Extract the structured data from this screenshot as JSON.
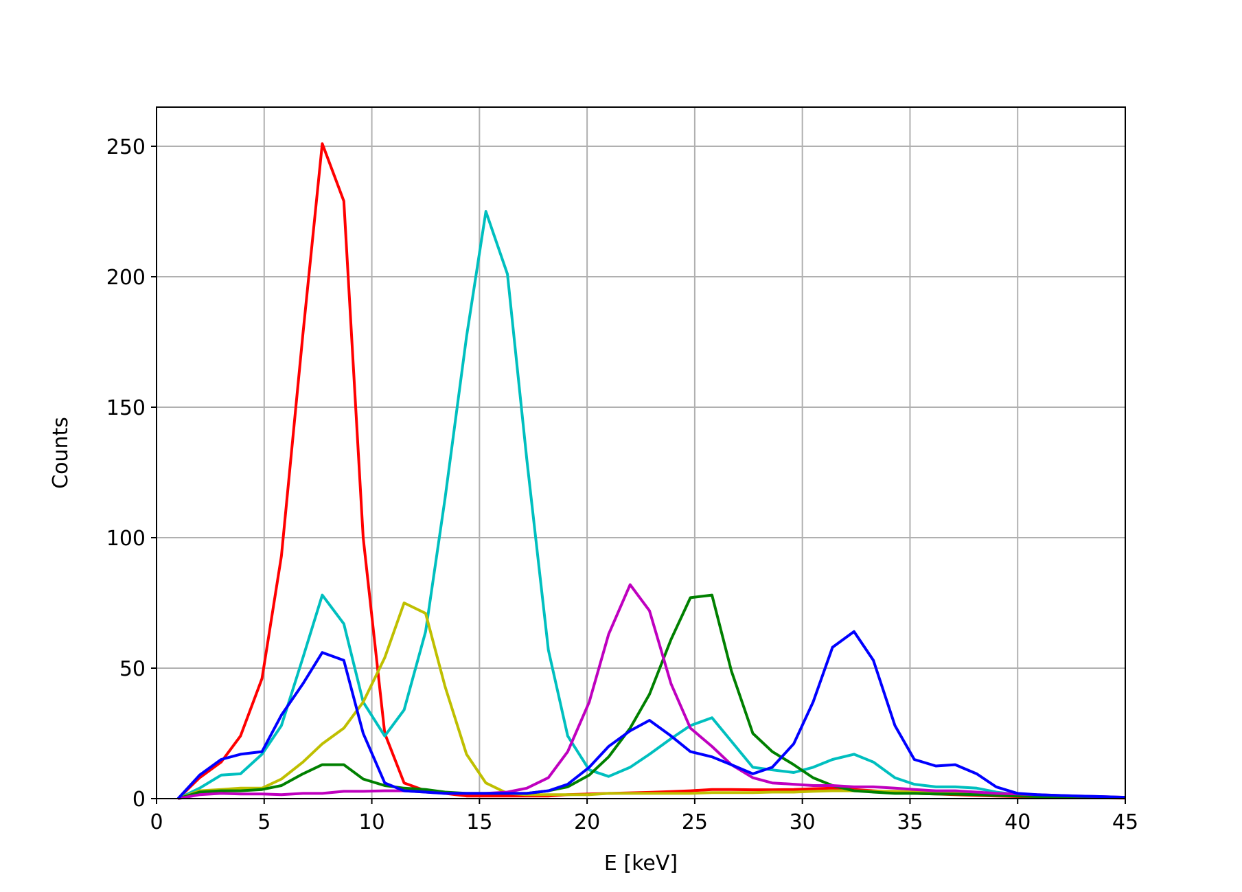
{
  "chart_data": {
    "type": "line",
    "title": "",
    "xlabel": "E [keV]",
    "ylabel": "Counts",
    "xlim": [
      0,
      45
    ],
    "ylim": [
      0,
      265
    ],
    "xticks": [
      "0",
      "5",
      "10",
      "15",
      "20",
      "25",
      "30",
      "35",
      "40",
      "45"
    ],
    "yticks": [
      "0",
      "50",
      "100",
      "150",
      "200",
      "250"
    ],
    "grid": true,
    "legend": "none",
    "x": [
      1.0,
      2.0,
      3.0,
      3.9,
      4.9,
      5.8,
      6.8,
      7.7,
      8.7,
      9.6,
      10.6,
      11.5,
      12.5,
      13.4,
      14.4,
      15.3,
      16.3,
      17.2,
      18.2,
      19.1,
      20.1,
      21.0,
      22.0,
      22.9,
      23.9,
      24.8,
      25.8,
      26.7,
      27.7,
      28.6,
      29.6,
      30.5,
      31.4,
      32.4,
      33.3,
      34.3,
      35.2,
      36.2,
      37.1,
      38.1,
      39.0,
      40.0,
      40.9,
      41.9,
      42.8,
      43.8,
      45.0
    ],
    "series": [
      {
        "color": "#ff0000",
        "values": [
          0,
          8,
          14,
          24,
          46,
          93,
          178,
          251,
          229,
          100,
          25,
          6,
          3,
          2,
          1,
          1,
          1,
          1,
          1,
          1.5,
          1.8,
          2,
          2.2,
          2.4,
          2.7,
          3,
          3.5,
          3.5,
          3.4,
          3.4,
          3.5,
          3.8,
          4,
          3.5,
          3,
          2.5,
          2,
          1.8,
          1.5,
          1.2,
          1,
          0.8,
          0.6,
          0.5,
          0.4,
          0.3,
          0.2
        ]
      },
      {
        "color": "#00bfbf",
        "values": [
          0,
          4,
          9,
          9.5,
          17,
          28,
          54,
          78,
          67,
          37,
          24,
          34,
          64,
          115,
          177,
          225,
          201,
          130,
          57,
          24,
          11,
          8.5,
          12,
          17,
          23,
          28,
          31,
          22,
          12,
          11,
          10,
          12,
          15,
          17,
          14,
          8,
          5.5,
          4.5,
          4.5,
          4,
          2.5,
          1.5,
          1,
          0.8,
          0.6,
          0.4,
          0.3
        ]
      },
      {
        "color": "#bfbf00",
        "values": [
          0,
          3,
          3.5,
          4,
          4,
          7.5,
          14,
          21,
          27,
          37,
          54,
          75,
          71,
          43,
          17,
          6,
          2,
          1.5,
          1.5,
          1.5,
          1.5,
          2,
          2,
          2,
          2,
          2,
          2.3,
          2.3,
          2.3,
          2.5,
          2.5,
          2.8,
          3,
          3,
          2.8,
          2.8,
          2.5,
          2.5,
          2.3,
          2,
          1.8,
          1.5,
          1.2,
          1,
          0.8,
          0.6,
          0.4
        ]
      },
      {
        "color": "#008000",
        "values": [
          0,
          2.5,
          3,
          3,
          3.5,
          5,
          9.5,
          13,
          13,
          7.5,
          5,
          4,
          3.5,
          2.5,
          2,
          2,
          2,
          2,
          3,
          4.5,
          9,
          16,
          27,
          40,
          61,
          77,
          78,
          49,
          25,
          18,
          13,
          8,
          5,
          3,
          2.5,
          2,
          2,
          1.8,
          1.7,
          1.5,
          1.2,
          1,
          0.8,
          0.6,
          0.5,
          0.4,
          0.3
        ]
      },
      {
        "color": "#bf00bf",
        "values": [
          0,
          1.5,
          2,
          1.8,
          1.8,
          1.5,
          2,
          2,
          2.8,
          2.8,
          3,
          3,
          2.5,
          2,
          2,
          2,
          2.5,
          4,
          8,
          18,
          37,
          63,
          82,
          72,
          44,
          27,
          20,
          13,
          8,
          6,
          5.5,
          5,
          5,
          4.5,
          4.5,
          4,
          3.5,
          3,
          3,
          2.5,
          2,
          1.8,
          1.5,
          1.2,
          1,
          0.8,
          0.5
        ]
      },
      {
        "color": "#0000ff",
        "values": [
          0,
          9,
          15,
          17,
          18,
          32,
          44,
          56,
          53,
          25,
          6,
          3,
          2.5,
          2,
          2,
          2,
          2,
          2,
          3,
          5.5,
          12,
          20,
          26,
          30,
          24,
          18,
          16,
          13,
          9.5,
          12,
          21,
          37,
          58,
          64,
          53,
          28,
          15,
          12.5,
          13,
          9.5,
          4.5,
          2,
          1.5,
          1.2,
          1,
          0.8,
          0.5
        ]
      }
    ]
  }
}
